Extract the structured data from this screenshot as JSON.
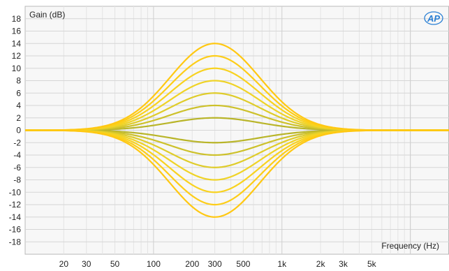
{
  "chart_data": {
    "type": "line",
    "ylabel": "Gain (dB)",
    "xlabel": "Frequency (Hz)",
    "x_scale": "log",
    "xlim": [
      10,
      20000
    ],
    "ylim": [
      -20,
      20
    ],
    "grid": true,
    "y_ticks": [
      "18",
      "16",
      "14",
      "12",
      "10",
      "8",
      "6",
      "4",
      "2",
      "0",
      "-2",
      "-4",
      "-6",
      "-8",
      "-10",
      "-12",
      "-14",
      "-16",
      "-18"
    ],
    "x_ticks": [
      {
        "value": 20,
        "label": "20"
      },
      {
        "value": 30,
        "label": "30"
      },
      {
        "value": 50,
        "label": "50"
      },
      {
        "value": 100,
        "label": "100"
      },
      {
        "value": 200,
        "label": "200"
      },
      {
        "value": 300,
        "label": "300"
      },
      {
        "value": 500,
        "label": "500"
      },
      {
        "value": 1000,
        "label": "1k"
      },
      {
        "value": 2000,
        "label": "2k"
      },
      {
        "value": 3000,
        "label": "3k"
      },
      {
        "value": 5000,
        "label": "5k"
      }
    ],
    "center_frequency_hz": 300,
    "series": [
      {
        "peak_gain_db": 14,
        "color": "#ffc812"
      },
      {
        "peak_gain_db": 12,
        "color": "#fdcd18"
      },
      {
        "peak_gain_db": 10,
        "color": "#f8d21f"
      },
      {
        "peak_gain_db": 8,
        "color": "#efd326"
      },
      {
        "peak_gain_db": 6,
        "color": "#dfcc2a"
      },
      {
        "peak_gain_db": 4,
        "color": "#cdc12b"
      },
      {
        "peak_gain_db": 2,
        "color": "#b9b529"
      },
      {
        "peak_gain_db": -2,
        "color": "#b9b529"
      },
      {
        "peak_gain_db": -4,
        "color": "#cdc12b"
      },
      {
        "peak_gain_db": -6,
        "color": "#dfcc2a"
      },
      {
        "peak_gain_db": -8,
        "color": "#efd326"
      },
      {
        "peak_gain_db": -10,
        "color": "#f8d21f"
      },
      {
        "peak_gain_db": -12,
        "color": "#fdcd18"
      },
      {
        "peak_gain_db": -14,
        "color": "#ffc812"
      }
    ]
  },
  "logo": {
    "text": "AP",
    "color": "#2a7fd4"
  }
}
